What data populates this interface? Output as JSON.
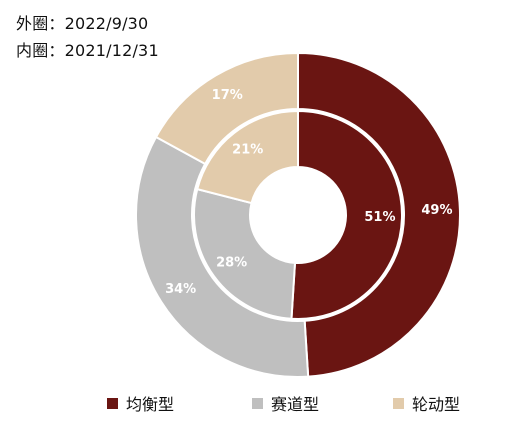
{
  "subtitles": [
    "外圈：2022/9/30",
    "内圈：2021/12/31"
  ],
  "colors": {
    "均衡型": "#6a1512",
    "赛道型": "#bfbfbf",
    "轮动型": "#e2cbab"
  },
  "chart_data": {
    "type": "pie",
    "title": "",
    "categories": [
      "均衡型",
      "赛道型",
      "轮动型"
    ],
    "series": [
      {
        "name": "外圈：2022/9/30",
        "ring": "outer",
        "values": [
          49,
          34,
          17
        ],
        "labels": [
          "49%",
          "34%",
          "17%"
        ]
      },
      {
        "name": "内圈：2021/12/31",
        "ring": "inner",
        "values": [
          51,
          28,
          21
        ],
        "labels": [
          "51%",
          "28%",
          "21%"
        ]
      }
    ],
    "legend": {
      "position": "bottom",
      "entries": [
        "均衡型",
        "赛道型",
        "轮动型"
      ]
    }
  }
}
